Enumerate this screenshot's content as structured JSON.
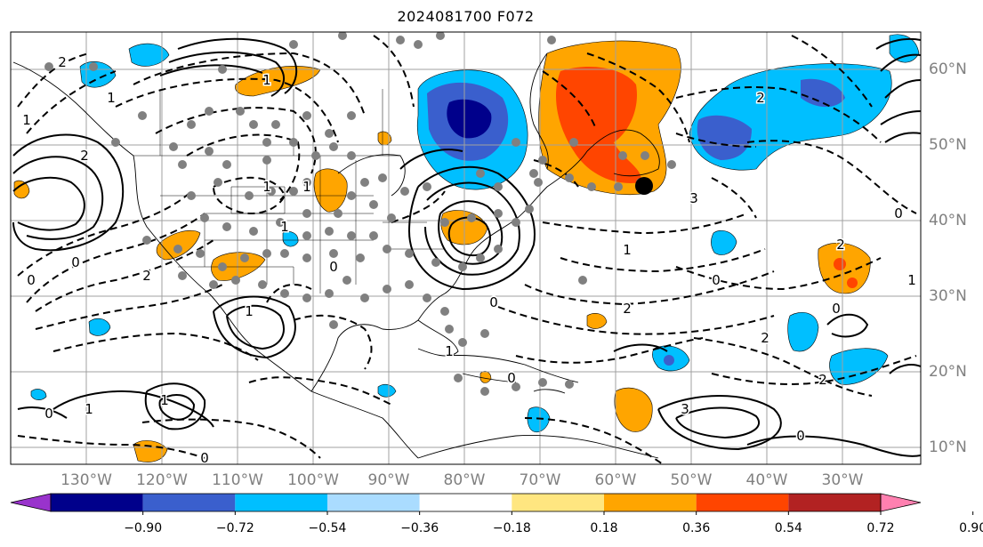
{
  "title": "2024081700 F072",
  "lon_labels": [
    "130°W",
    "120°W",
    "110°W",
    "100°W",
    "90°W",
    "80°W",
    "70°W",
    "60°W",
    "50°W",
    "40°W",
    "30°W"
  ],
  "lat_labels": [
    "60°N",
    "50°N",
    "40°N",
    "30°N",
    "20°N",
    "10°N"
  ],
  "colorbar": {
    "ticks": [
      "−0.90",
      "−0.72",
      "−0.54",
      "−0.36",
      "−0.18",
      "0.18",
      "0.36",
      "0.54",
      "0.72",
      "0.90"
    ],
    "colors": [
      "#9933cc",
      "#00008b",
      "#3a5fcd",
      "#00bfff",
      "#aadcff",
      "#ffffff",
      "#ffe680",
      "#ffa500",
      "#ff4500",
      "#b22222",
      "#ff80b0"
    ]
  },
  "contour_labels": [
    "2",
    "2",
    "1",
    "0",
    "0",
    "1",
    "1",
    "1",
    "1",
    "1",
    "1",
    "0",
    "0",
    "1",
    "2",
    "3",
    "0",
    "2",
    "2",
    "2",
    "0",
    "1",
    "0",
    "0",
    "1",
    "0",
    "1",
    "1",
    "3",
    "2",
    "0",
    "0",
    "2"
  ],
  "colors": {
    "grid": "#a0a0a0",
    "coast": "#000000",
    "station_dot": "#808080"
  }
}
